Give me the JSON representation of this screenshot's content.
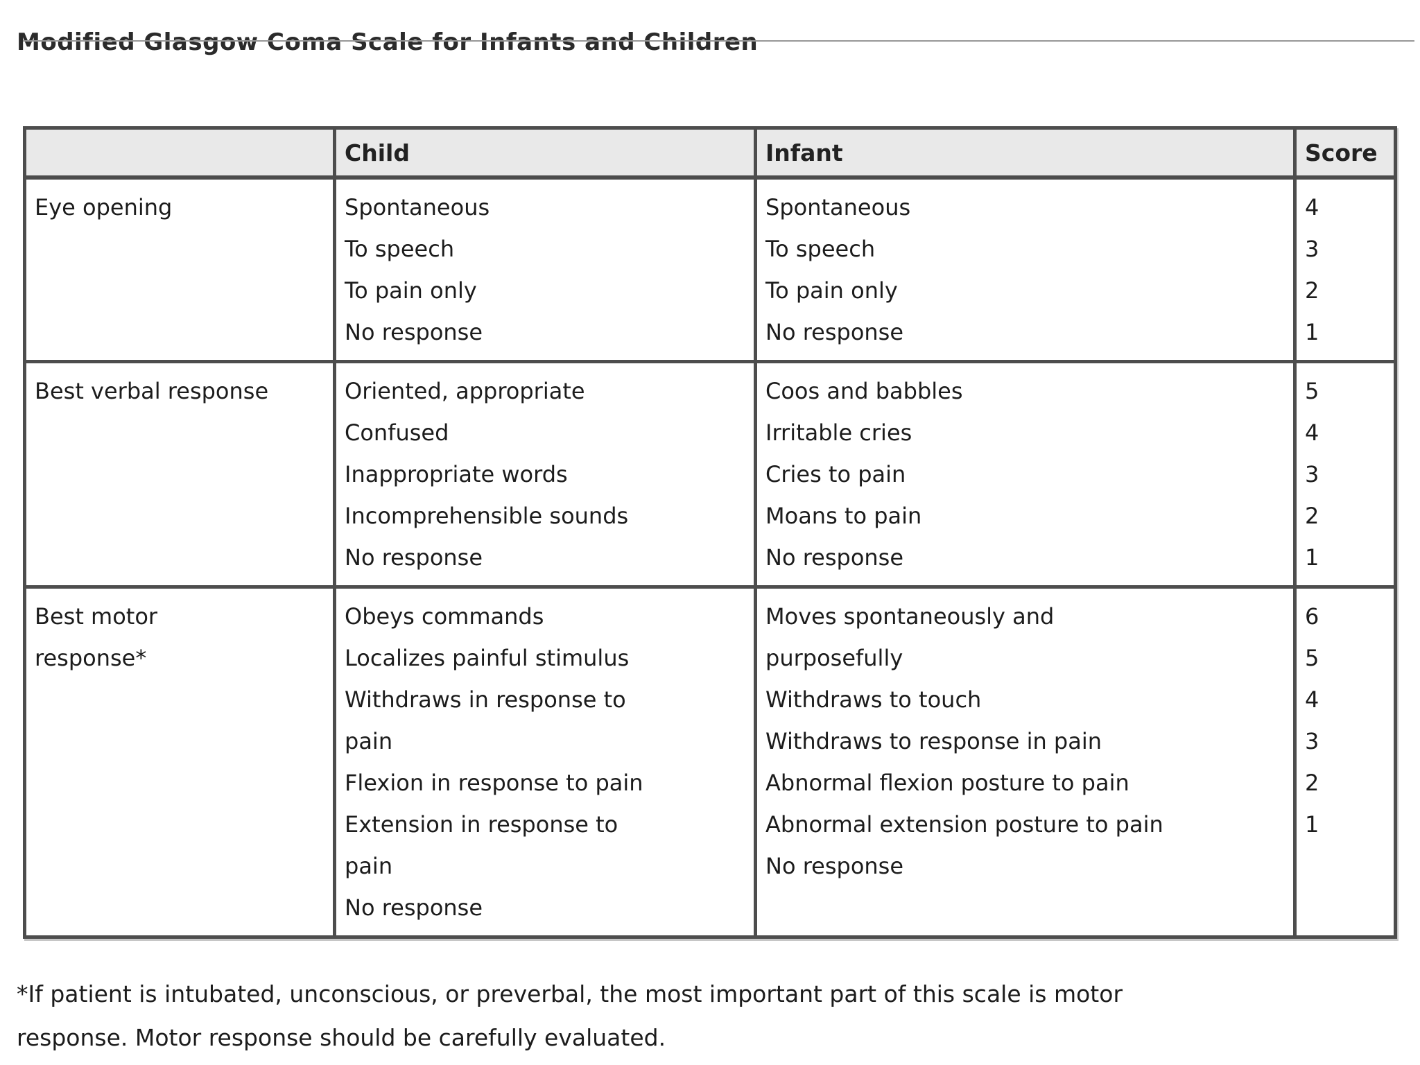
{
  "page": {
    "title": "Modified Glasgow Coma Scale for Infants and Children"
  },
  "table": {
    "headers": {
      "row_label": "",
      "child": "Child",
      "infant": "Infant",
      "score": "Score"
    },
    "rows": [
      {
        "label_lines": [
          "Eye opening"
        ],
        "child_lines": [
          "Spontaneous",
          "To speech",
          "To pain only",
          "No response"
        ],
        "infant_lines": [
          "Spontaneous",
          "To speech",
          "To pain only",
          "No response"
        ],
        "score_lines": [
          "4",
          "3",
          "2",
          "1"
        ]
      },
      {
        "label_lines": [
          "Best verbal response"
        ],
        "child_lines": [
          "Oriented, appropriate",
          "Confused",
          "Inappropriate words",
          "Incomprehensible sounds",
          "No response"
        ],
        "infant_lines": [
          "Coos and babbles",
          "Irritable cries",
          "Cries to pain",
          "Moans to pain",
          "No response"
        ],
        "score_lines": [
          "5",
          "4",
          "3",
          "2",
          "1"
        ]
      },
      {
        "label_lines": [
          "Best motor",
          "response*"
        ],
        "child_lines": [
          "Obeys commands",
          "Localizes painful stimulus",
          "Withdraws in response to",
          "pain",
          "Flexion in response to pain",
          "Extension in response to",
          "pain",
          "No response"
        ],
        "infant_lines": [
          "Moves spontaneously and",
          "purposefully",
          "Withdraws to touch",
          "Withdraws to response in pain",
          "Abnormal flexion posture to pain",
          "Abnormal extension posture to pain",
          "No response"
        ],
        "score_lines": [
          "6",
          "5",
          "4",
          "3",
          "2",
          "1"
        ]
      }
    ]
  },
  "footnote": {
    "lines": [
      "*If patient is intubated, unconscious, or preverbal, the most important part of this scale is motor",
      "response. Motor response should be carefully evaluated."
    ]
  },
  "colors": {
    "header_bg": "#e9e9e9",
    "border": "#4d4d4d",
    "text": "#1c1c1c",
    "top_rule": "#979797"
  }
}
